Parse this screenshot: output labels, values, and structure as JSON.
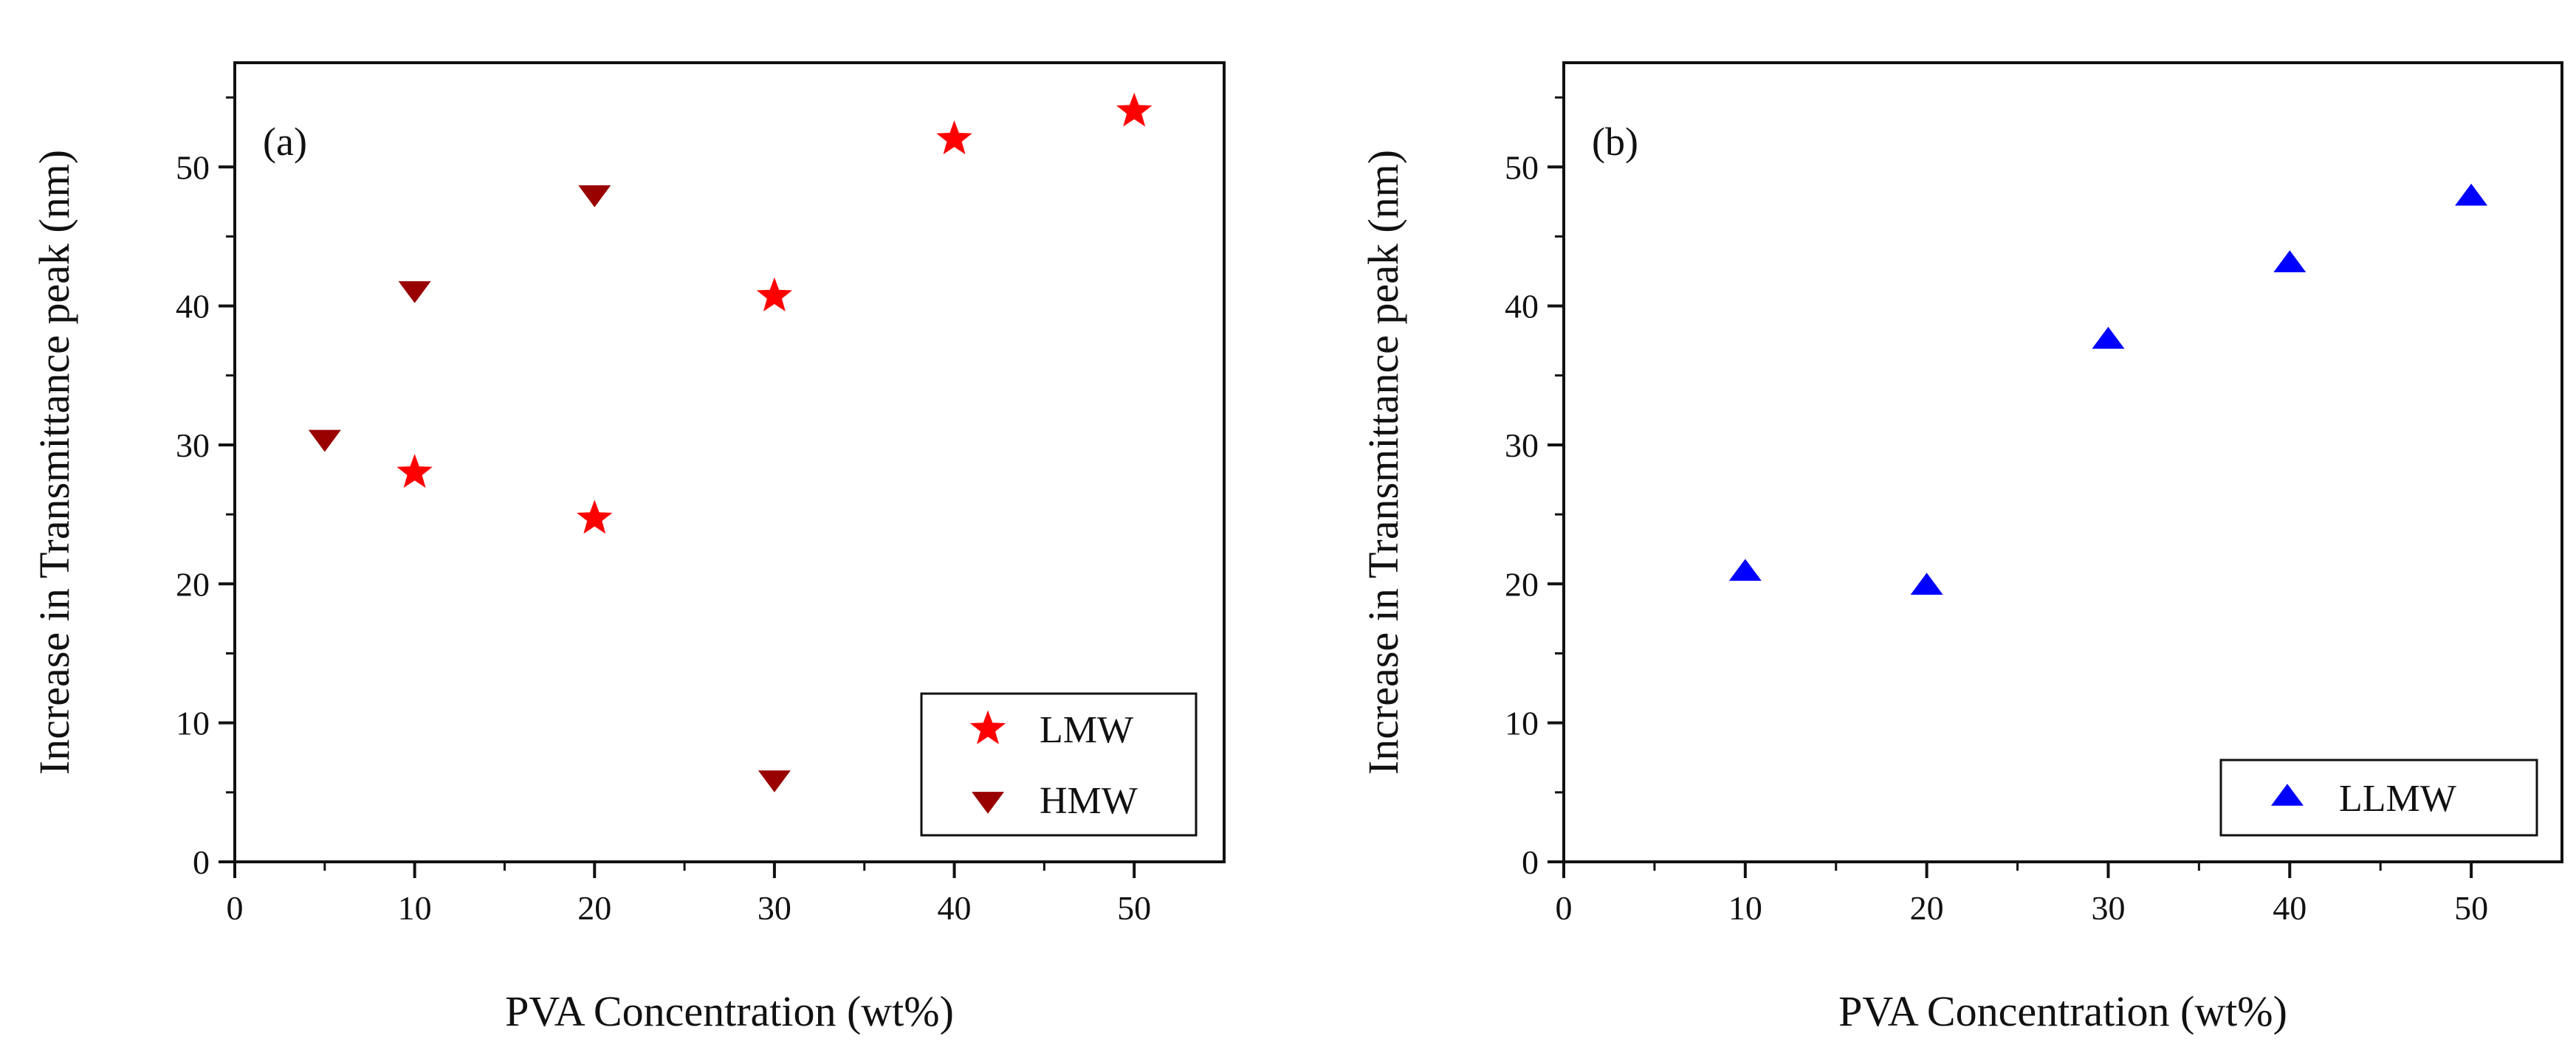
{
  "chart_data": [
    {
      "type": "scatter",
      "panel_label": "(a)",
      "xlabel": "PVA Concentration (wt%)",
      "ylabel": "Increase in Transmittance peak (nm)",
      "xlim": [
        0,
        55
      ],
      "ylim": [
        0,
        57.5
      ],
      "xticks": [
        0,
        10,
        20,
        30,
        40,
        50
      ],
      "yticks": [
        0,
        10,
        20,
        30,
        40,
        50
      ],
      "grid": false,
      "legend_position": "bottom-right",
      "series": [
        {
          "name": "LMW",
          "marker": "star",
          "color": "#ff0000",
          "x": [
            10,
            20,
            30,
            40,
            50
          ],
          "y": [
            28,
            24.7,
            40.7,
            52,
            54
          ]
        },
        {
          "name": "HMW",
          "marker": "triangle-down",
          "color": "#990000",
          "x": [
            5,
            10,
            20,
            30
          ],
          "y": [
            30.5,
            41.2,
            48.1,
            6
          ]
        }
      ]
    },
    {
      "type": "scatter",
      "panel_label": "(b)",
      "xlabel": "PVA Concentration (wt%)",
      "ylabel": "Increase in Transmittance peak (nm)",
      "xlim": [
        0,
        55
      ],
      "ylim": [
        0,
        57.5
      ],
      "xticks": [
        0,
        10,
        20,
        30,
        40,
        50
      ],
      "yticks": [
        0,
        10,
        20,
        30,
        40,
        50
      ],
      "grid": false,
      "legend_position": "bottom-right",
      "series": [
        {
          "name": "LLMW",
          "marker": "triangle-up",
          "color": "#0000ff",
          "x": [
            10,
            20,
            30,
            40,
            50
          ],
          "y": [
            20.8,
            19.8,
            37.5,
            43,
            47.8
          ]
        }
      ]
    }
  ]
}
